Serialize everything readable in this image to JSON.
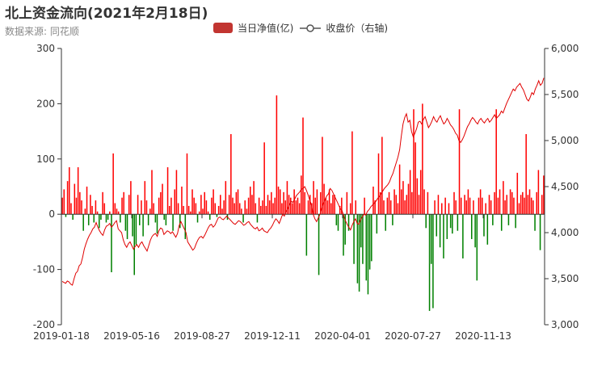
{
  "header": {
    "title": "北上资金流向(2021年2月18日)",
    "subtitle": "数据来源: 同花顺"
  },
  "legend": {
    "flow_label": "当日净值(亿)",
    "price_label": "收盘价（右轴)"
  },
  "colors": {
    "flow_positive": "#ff0000",
    "flow_negative": "#008000",
    "price_line": "#e00000",
    "legend_bar": "#c23531",
    "axis": "#333333"
  },
  "chart_data": {
    "type": "bar+line",
    "x_tick_labels": [
      "2019-01-18",
      "2019-05-16",
      "2019-08-27",
      "2019-12-11",
      "2020-04-01",
      "2020-07-27",
      "2020-11-13"
    ],
    "left_axis": {
      "ylim": [
        -200,
        300
      ],
      "ticks": [
        -200,
        -100,
        0,
        100,
        200,
        300
      ]
    },
    "right_axis": {
      "ylim": [
        3000,
        6000
      ],
      "ticks": [
        "3,000",
        "3,500",
        "4,000",
        "4,500",
        "5,000",
        "5,500",
        "6,000"
      ]
    },
    "grid": false,
    "legend_position": "top-center",
    "series": [
      {
        "name": "当日净值(亿)",
        "type": "bar",
        "axis": "left",
        "values": [
          30,
          45,
          -5,
          60,
          85,
          20,
          -10,
          55,
          30,
          85,
          40,
          25,
          -30,
          10,
          50,
          -20,
          35,
          15,
          -15,
          25,
          5,
          -25,
          -10,
          40,
          20,
          -15,
          -10,
          5,
          -105,
          110,
          20,
          10,
          5,
          -15,
          30,
          40,
          -30,
          -45,
          35,
          60,
          -40,
          -110,
          -55,
          35,
          -20,
          25,
          -40,
          60,
          25,
          -20,
          10,
          80,
          20,
          -15,
          -35,
          30,
          40,
          55,
          -10,
          -20,
          85,
          15,
          30,
          -30,
          45,
          80,
          20,
          -25,
          50,
          15,
          -45,
          110,
          15,
          5,
          45,
          30,
          20,
          -15,
          5,
          35,
          10,
          40,
          25,
          5,
          -10,
          30,
          45,
          20,
          -5,
          15,
          35,
          10,
          25,
          60,
          -10,
          35,
          145,
          30,
          20,
          40,
          45,
          20,
          10,
          -15,
          25,
          10,
          30,
          50,
          35,
          60,
          20,
          -15,
          30,
          15,
          25,
          130,
          15,
          35,
          25,
          40,
          20,
          30,
          215,
          50,
          45,
          20,
          40,
          25,
          60,
          35,
          30,
          20,
          45,
          25,
          30,
          20,
          70,
          175,
          40,
          -75,
          25,
          35,
          20,
          60,
          30,
          45,
          -110,
          40,
          140,
          55,
          30,
          25,
          45,
          20,
          35,
          35,
          -20,
          -30,
          15,
          30,
          -75,
          -55,
          40,
          -30,
          20,
          150,
          -90,
          25,
          -125,
          -140,
          -60,
          -90,
          30,
          -120,
          -145,
          -100,
          -85,
          50,
          25,
          -35,
          110,
          40,
          140,
          25,
          -30,
          30,
          40,
          25,
          -20,
          45,
          35,
          20,
          90,
          45,
          60,
          25,
          35,
          55,
          80,
          40,
          190,
          130,
          65,
          35,
          80,
          200,
          45,
          -25,
          40,
          -175,
          -90,
          -170,
          25,
          -40,
          35,
          -60,
          20,
          -80,
          30,
          -45,
          20,
          -25,
          -35,
          40,
          25,
          -30,
          190,
          30,
          -80,
          35,
          25,
          45,
          30,
          -45,
          25,
          -60,
          -120,
          30,
          45,
          30,
          -40,
          20,
          -55,
          35,
          25,
          -20,
          40,
          190,
          30,
          45,
          -30,
          60,
          25,
          35,
          -20,
          45,
          40,
          30,
          -25,
          75,
          20,
          35,
          40,
          30,
          145,
          35,
          45,
          30,
          25,
          -30,
          40,
          80,
          -65,
          35,
          70
        ]
      },
      {
        "name": "收盘价（右轴)",
        "type": "line",
        "axis": "right",
        "values": [
          3470,
          3460,
          3450,
          3475,
          3465,
          3440,
          3430,
          3500,
          3560,
          3580,
          3640,
          3660,
          3730,
          3820,
          3880,
          3930,
          3970,
          4000,
          4040,
          4060,
          4110,
          4060,
          4020,
          3990,
          3970,
          4030,
          4070,
          4080,
          4100,
          4060,
          4080,
          4110,
          4130,
          4040,
          4020,
          4000,
          3920,
          3870,
          3840,
          3880,
          3900,
          3860,
          3820,
          3850,
          3870,
          3840,
          3880,
          3900,
          3860,
          3830,
          3800,
          3860,
          3920,
          3960,
          3980,
          3990,
          3960,
          4020,
          4050,
          4040,
          3980,
          4000,
          4020,
          4010,
          3990,
          4010,
          3980,
          3950,
          3990,
          4080,
          4120,
          4080,
          4040,
          4000,
          3900,
          3870,
          3840,
          3810,
          3830,
          3880,
          3920,
          3950,
          3960,
          3940,
          3970,
          4010,
          4050,
          4080,
          4090,
          4060,
          4080,
          4120,
          4160,
          4170,
          4150,
          4140,
          4160,
          4180,
          4160,
          4140,
          4120,
          4100,
          4090,
          4110,
          4130,
          4120,
          4100,
          4080,
          4090,
          4110,
          4120,
          4090,
          4070,
          4050,
          4040,
          4060,
          4020,
          4030,
          4050,
          4020,
          4010,
          4000,
          4030,
          4050,
          4080,
          4120,
          4150,
          4130,
          4100,
          4150,
          4200,
          4180,
          4230,
          4260,
          4300,
          4340,
          4330,
          4360,
          4400,
          4420,
          4440,
          4470,
          4480,
          4500,
          4460,
          4410,
          4350,
          4300,
          4200,
          4150,
          4120,
          4160,
          4200,
          4260,
          4320,
          4360,
          4400,
          4420,
          4480,
          4460,
          4420,
          4380,
          4340,
          4300,
          4260,
          4240,
          4180,
          4130,
          4090,
          4060,
          4030,
          4080,
          4120,
          4150,
          4100,
          4090,
          4140,
          4170,
          4200,
          4190,
          4230,
          4250,
          4280,
          4300,
          4320,
          4340,
          4370,
          4390,
          4420,
          4450,
          4480,
          4500,
          4520,
          4550,
          4600,
          4640,
          4700,
          4760,
          4820,
          4900,
          5050,
          5180,
          5250,
          5290,
          5200,
          5220,
          5100,
          5040,
          5080,
          5130,
          5200,
          5210,
          5180,
          5230,
          5260,
          5200,
          5140,
          5170,
          5210,
          5260,
          5220,
          5200,
          5240,
          5270,
          5220,
          5180,
          5200,
          5240,
          5210,
          5170,
          5150,
          5120,
          5080,
          5060,
          5000,
          4980,
          5010,
          5050,
          5100,
          5150,
          5180,
          5220,
          5250,
          5230,
          5200,
          5180,
          5220,
          5240,
          5210,
          5190,
          5220,
          5240,
          5200,
          5220,
          5250,
          5280,
          5240,
          5260,
          5280,
          5320,
          5300,
          5350,
          5400,
          5440,
          5480,
          5520,
          5560,
          5540,
          5580,
          5600,
          5620,
          5580,
          5550,
          5500,
          5450,
          5430,
          5470,
          5520,
          5500,
          5560,
          5600,
          5650,
          5600,
          5620,
          5680
        ]
      }
    ]
  }
}
